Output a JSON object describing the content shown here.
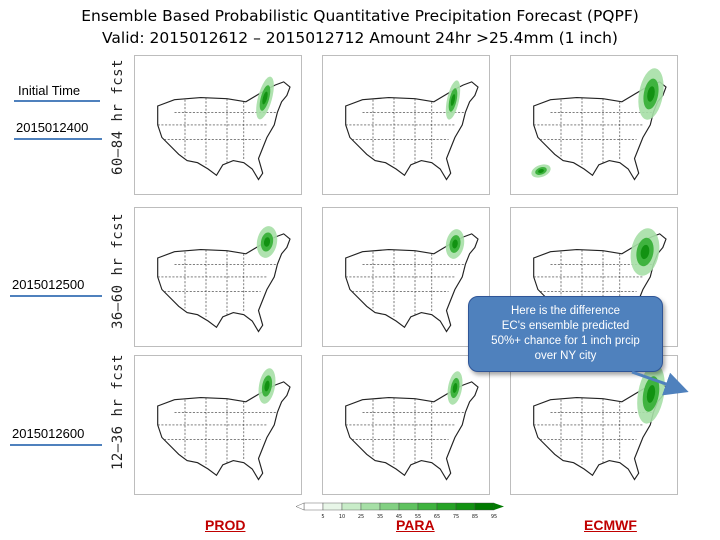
{
  "title": {
    "line1": "Ensemble Based Probabilistic Quantitative Precipitation Forecast (PQPF)",
    "line2": "Valid: 2015012612 – 2015012712 Amount 24hr >25.4mm (1 inch)"
  },
  "initial_time_label": "Initial Time",
  "rows": [
    {
      "forecast_label": "60–84 hr fcst",
      "date": "2015012400"
    },
    {
      "forecast_label": "36–60 hr fcst",
      "date": "2015012500"
    },
    {
      "forecast_label": "12–36 hr fcst",
      "date": "2015012600"
    }
  ],
  "models": [
    "PROD",
    "PARA",
    "ECMWF"
  ],
  "callout": {
    "line1": "Here is the difference",
    "line2": "EC's ensemble predicted",
    "line3": "50%+ chance for 1 inch prcip",
    "line4": "over NY city"
  },
  "colorbar": {
    "ticks": [
      "5",
      "10",
      "25",
      "35",
      "45",
      "55",
      "65",
      "75",
      "85",
      "95"
    ],
    "colors": [
      "#ffffff",
      "#e8f6e8",
      "#c8ecc8",
      "#a6dfa6",
      "#82d082",
      "#5fc25f",
      "#3fb33f",
      "#26a326",
      "#129212",
      "#007a00"
    ]
  },
  "colors": {
    "accent_blue": "#4f81bd",
    "model_label": "#c00000",
    "precip_green": "#3fb33f"
  }
}
